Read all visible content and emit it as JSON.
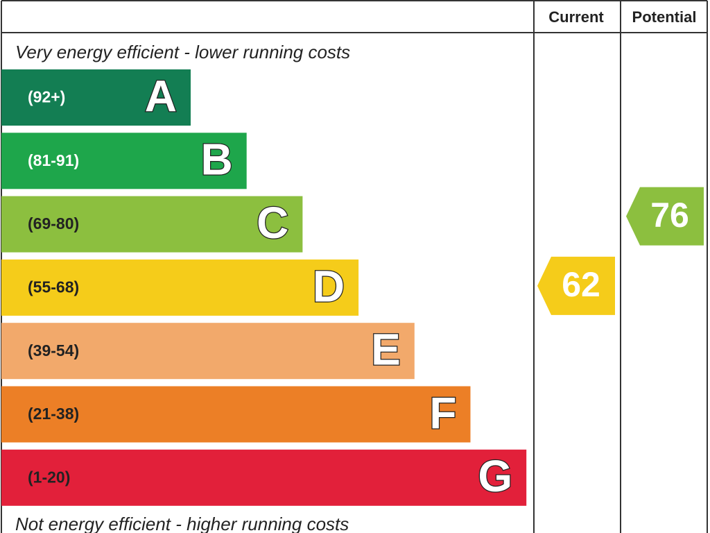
{
  "header": {
    "current": "Current",
    "potential": "Potential"
  },
  "top_label": "Very energy efficient - lower running costs",
  "bottom_label": "Not energy efficient - higher running costs",
  "bands": [
    {
      "range": "(92+)",
      "letter": "A",
      "color": "#137e53",
      "text_color": "#ffffff"
    },
    {
      "range": "(81-91)",
      "letter": "B",
      "color": "#1ea64b",
      "text_color": "#ffffff"
    },
    {
      "range": "(69-80)",
      "letter": "C",
      "color": "#8cbf3f",
      "text_color": "#222222"
    },
    {
      "range": "(55-68)",
      "letter": "D",
      "color": "#f5cc1a",
      "text_color": "#222222"
    },
    {
      "range": "(39-54)",
      "letter": "E",
      "color": "#f2a96b",
      "text_color": "#222222"
    },
    {
      "range": "(21-38)",
      "letter": "F",
      "color": "#ec7f26",
      "text_color": "#222222"
    },
    {
      "range": "(1-20)",
      "letter": "G",
      "color": "#e2203a",
      "text_color": "#222222"
    }
  ],
  "ratings": {
    "current": {
      "value": 62,
      "color": "#f5cc1a"
    },
    "potential": {
      "value": 76,
      "color": "#8cbf3f"
    }
  }
}
